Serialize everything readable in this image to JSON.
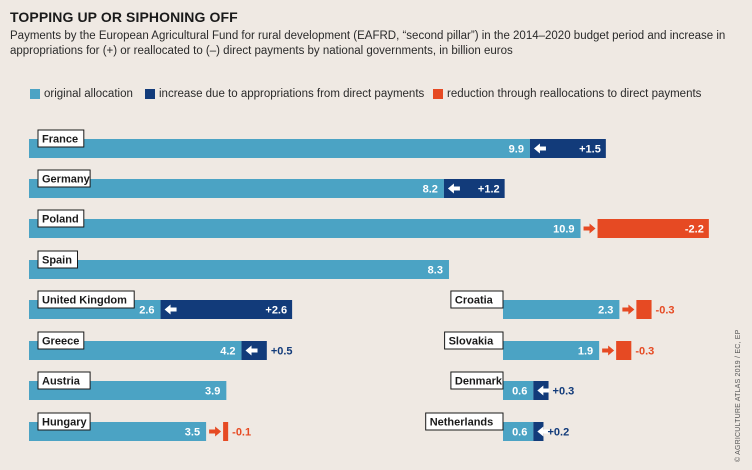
{
  "header": {
    "title": "TOPPING UP OR SIPHONING OFF",
    "subtitle": "Payments by the European Agricultural Fund for rural development (EAFRD, “second pillar”) in the 2014–2020 budget period and increase in appropriations for (+) or reallocated to (–) direct payments by national governments, in billion euros"
  },
  "legend": [
    {
      "label": "original allocation",
      "color": "#4ba3c4"
    },
    {
      "label": "increase due to appropriations from direct payments",
      "color": "#123b7a"
    },
    {
      "label": "reduction through reallocations to direct payments",
      "color": "#e64a23"
    }
  ],
  "credit": "© AGRICULTURE ATLAS 2019 / EC, EP",
  "chart_data": {
    "type": "bar",
    "orientation": "horizontal",
    "unit": "billion euros",
    "series": [
      {
        "name": "original allocation"
      },
      {
        "name": "increase due to appropriations from direct payments"
      },
      {
        "name": "reduction through reallocations to direct payments"
      }
    ],
    "countries": [
      {
        "name": "France",
        "original": 9.9,
        "change": 1.5,
        "original_label": "9.9",
        "change_label": "+1.5"
      },
      {
        "name": "Germany",
        "original": 8.2,
        "change": 1.2,
        "original_label": "8.2",
        "change_label": "+1.2"
      },
      {
        "name": "Poland",
        "original": 10.9,
        "change": -2.2,
        "original_label": "10.9",
        "change_label": "-2.2"
      },
      {
        "name": "Spain",
        "original": 8.3,
        "change": 0,
        "original_label": "8.3",
        "change_label": ""
      },
      {
        "name": "United Kingdom",
        "original": 2.6,
        "change": 2.6,
        "original_label": "2.6",
        "change_label": "+2.6"
      },
      {
        "name": "Greece",
        "original": 4.2,
        "change": 0.5,
        "original_label": "4.2",
        "change_label": "+0.5"
      },
      {
        "name": "Austria",
        "original": 3.9,
        "change": 0,
        "original_label": "3.9",
        "change_label": ""
      },
      {
        "name": "Hungary",
        "original": 3.5,
        "change": -0.1,
        "original_label": "3.5",
        "change_label": "-0.1"
      },
      {
        "name": "Croatia",
        "original": 2.3,
        "change": -0.3,
        "original_label": "2.3",
        "change_label": "-0.3"
      },
      {
        "name": "Slovakia",
        "original": 1.9,
        "change": -0.3,
        "original_label": "1.9",
        "change_label": "-0.3"
      },
      {
        "name": "Denmark",
        "original": 0.6,
        "change": 0.3,
        "original_label": "0.6",
        "change_label": "+0.3"
      },
      {
        "name": "Netherlands",
        "original": 0.6,
        "change": 0.2,
        "original_label": "0.6",
        "change_label": "+0.2"
      }
    ]
  }
}
